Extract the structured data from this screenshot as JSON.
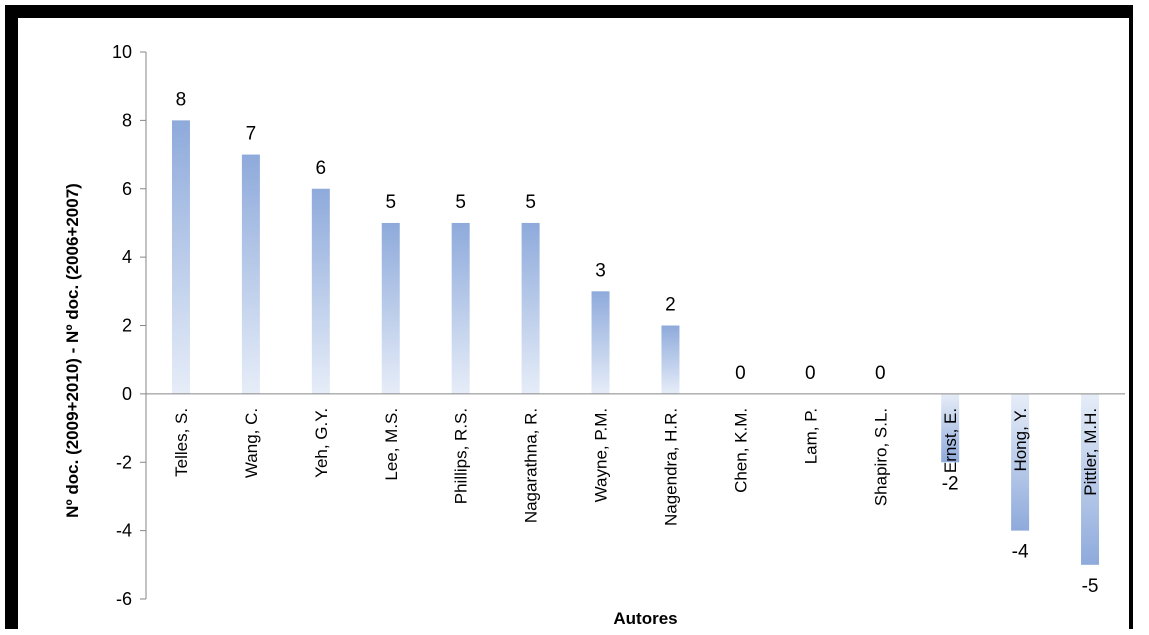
{
  "chart_data": {
    "type": "bar",
    "title": "",
    "xlabel": "Autores",
    "ylabel": "Nº doc. (2009+2010) - Nº doc. (2006+2007)",
    "ylim": [
      -6,
      10
    ],
    "yticks": [
      -6,
      -4,
      -2,
      0,
      2,
      4,
      6,
      8,
      10
    ],
    "categories": [
      "Telles, S.",
      "Wang, C.",
      "Yeh, G.Y.",
      "Lee, M.S.",
      "Phillips, R.S.",
      "Nagarathna, R.",
      "Wayne, P.M.",
      "Nagendra, H.R.",
      "Chen, K.M.",
      "Lam, P.",
      "Shapiro, S.L.",
      "Ernst, E.",
      "Hong, Y.",
      "Pittler, M.H."
    ],
    "values": [
      8,
      7,
      6,
      5,
      5,
      5,
      3,
      2,
      0,
      0,
      0,
      -2,
      -4,
      -5
    ],
    "grid": false,
    "legend": "none",
    "colors": {
      "bar_top": "#8eaadb",
      "bar_bottom": "#e6edf8",
      "axis": "#868686"
    }
  }
}
